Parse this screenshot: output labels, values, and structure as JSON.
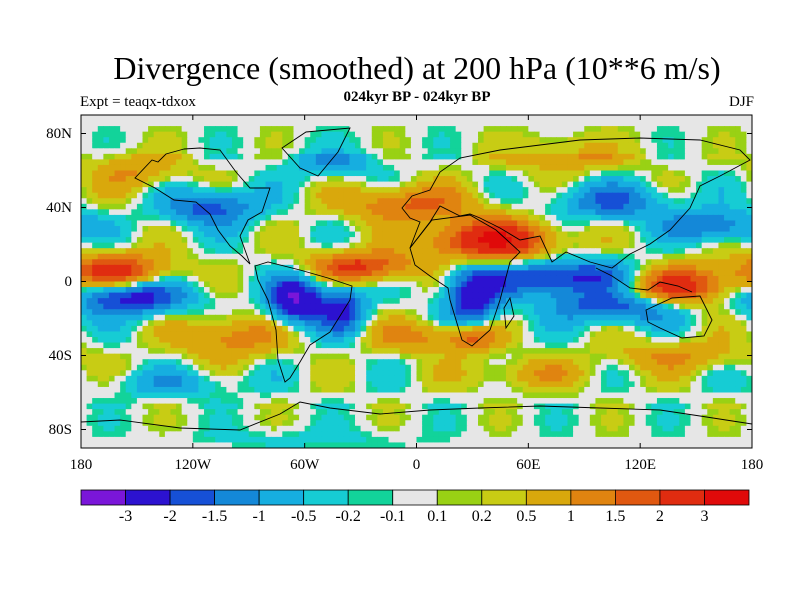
{
  "title": "Divergence (smoothed) at 200 hPa (10**6 m/s)",
  "subtitle": "024kyr BP - 024kyr BP",
  "experiment_label": "Expt = teaqx-tdxox",
  "season_label": "DJF",
  "map": {
    "projection": "cylindrical-equidistant",
    "lon_range": [
      -180,
      180
    ],
    "lat_range": [
      -90,
      90
    ],
    "lat_ticks": [
      {
        "value": 80,
        "label": "80N"
      },
      {
        "value": 40,
        "label": "40N"
      },
      {
        "value": 0,
        "label": "0"
      },
      {
        "value": -40,
        "label": "40S"
      },
      {
        "value": -80,
        "label": "80S"
      }
    ],
    "lon_ticks": [
      {
        "value": -180,
        "label": "180"
      },
      {
        "value": -120,
        "label": "120W"
      },
      {
        "value": -60,
        "label": "60W"
      },
      {
        "value": 0,
        "label": "0"
      },
      {
        "value": 60,
        "label": "60E"
      },
      {
        "value": 120,
        "label": "120E"
      },
      {
        "value": 180,
        "label": "180"
      }
    ]
  },
  "colorbar": {
    "colors": [
      "#7a16d9",
      "#2c12d0",
      "#1650d6",
      "#1488d8",
      "#16aee0",
      "#16ccd4",
      "#12d39a",
      "#e6e6e6",
      "#99d114",
      "#c8cc14",
      "#d9a80c",
      "#e08410",
      "#e05810",
      "#e02c10",
      "#e00a0a"
    ],
    "labels": [
      "-3",
      "-2",
      "-1.5",
      "-1",
      "-0.5",
      "-0.2",
      "-0.1",
      "0.1",
      "0.2",
      "0.5",
      "1",
      "1.5",
      "2",
      "3"
    ]
  },
  "field_features": [
    {
      "lon": 40,
      "lat": 22,
      "value": 3,
      "sx": 24,
      "sy": 8
    },
    {
      "lon": 140,
      "lat": -3,
      "value": 2.6,
      "sx": 22,
      "sy": 8
    },
    {
      "lon": -160,
      "lat": 5,
      "value": 2.5,
      "sx": 20,
      "sy": 7
    },
    {
      "lon": -30,
      "lat": 8,
      "value": 2.2,
      "sx": 20,
      "sy": 6
    },
    {
      "lon": 80,
      "lat": 2,
      "value": -2.4,
      "sx": 30,
      "sy": 7
    },
    {
      "lon": -155,
      "lat": -8,
      "value": -2.6,
      "sx": 22,
      "sy": 7
    },
    {
      "lon": -65,
      "lat": -10,
      "value": -3,
      "sx": 10,
      "sy": 9
    },
    {
      "lon": -40,
      "lat": -15,
      "value": -2.2,
      "sx": 9,
      "sy": 9
    },
    {
      "lon": 30,
      "lat": -10,
      "value": -2.4,
      "sx": 10,
      "sy": 12
    },
    {
      "lon": 110,
      "lat": -14,
      "value": -2,
      "sx": 25,
      "sy": 6
    },
    {
      "lon": -110,
      "lat": 40,
      "value": -1.8,
      "sx": 18,
      "sy": 7
    },
    {
      "lon": -5,
      "lat": 42,
      "value": 1.6,
      "sx": 25,
      "sy": 7
    },
    {
      "lon": 105,
      "lat": 43,
      "value": -1.5,
      "sx": 22,
      "sy": 7
    },
    {
      "lon": -45,
      "lat": 65,
      "value": -1.2,
      "sx": 15,
      "sy": 6
    },
    {
      "lon": 80,
      "lat": 70,
      "value": 1.2,
      "sx": 25,
      "sy": 7
    },
    {
      "lon": -150,
      "lat": 60,
      "value": 1,
      "sx": 18,
      "sy": 8
    },
    {
      "lon": 160,
      "lat": 30,
      "value": -1.6,
      "sx": 18,
      "sy": 6
    },
    {
      "lon": 30,
      "lat": -30,
      "value": 1.8,
      "sx": 10,
      "sy": 6
    },
    {
      "lon": -100,
      "lat": -30,
      "value": 1.4,
      "sx": 20,
      "sy": 8
    },
    {
      "lon": 0,
      "lat": -30,
      "value": 1.2,
      "sx": 18,
      "sy": 6
    },
    {
      "lon": 140,
      "lat": -40,
      "value": 1,
      "sx": 25,
      "sy": 6
    },
    {
      "lon": -130,
      "lat": -55,
      "value": -0.8,
      "sx": 25,
      "sy": 5
    },
    {
      "lon": -60,
      "lat": -85,
      "value": -0.6,
      "sx": 40,
      "sy": 4
    },
    {
      "lon": 60,
      "lat": -50,
      "value": 0.8,
      "sx": 25,
      "sy": 6
    }
  ]
}
